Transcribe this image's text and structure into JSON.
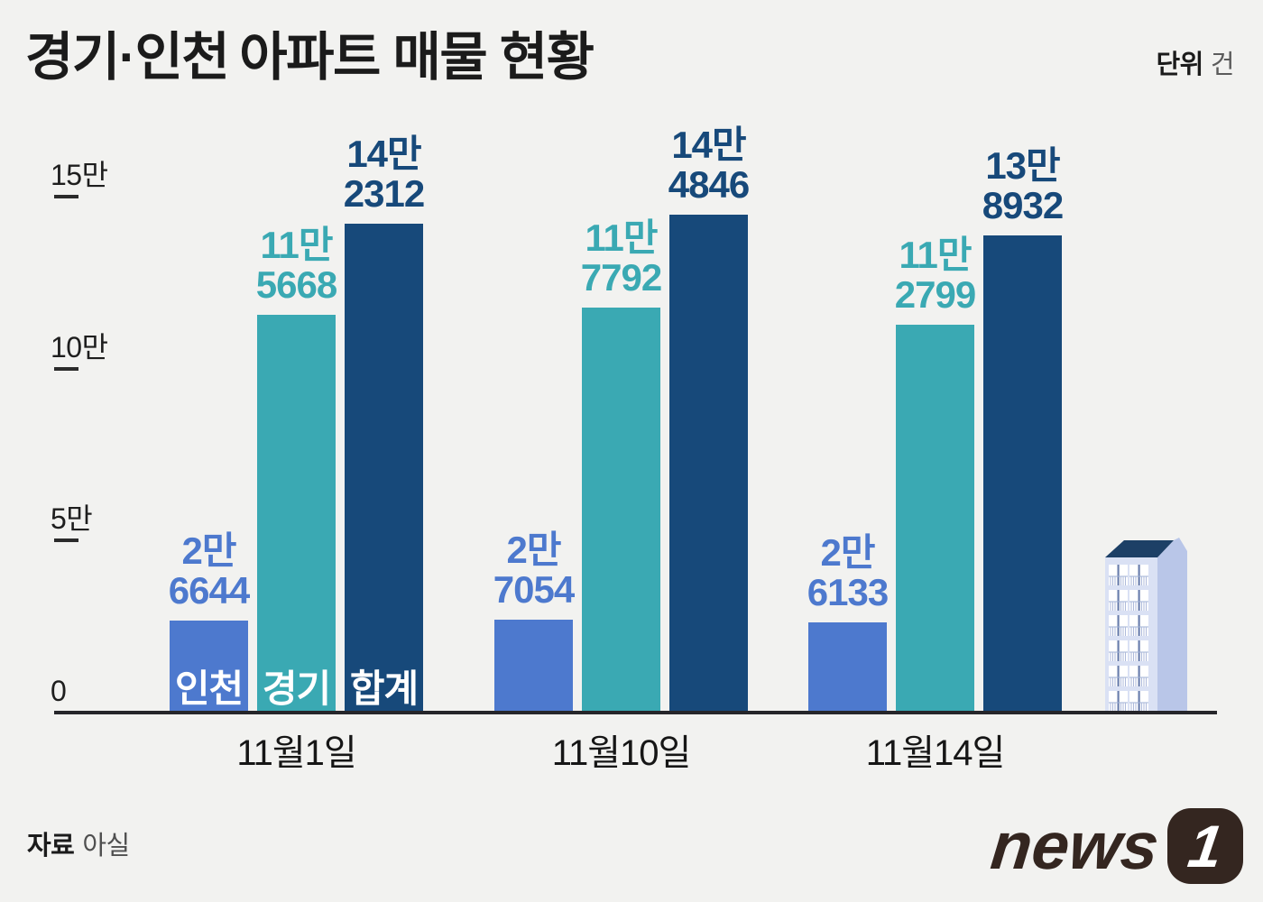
{
  "header": {
    "title_regular": "경기·인천",
    "title_bold": "아파트 매물 현황",
    "unit_label": "단위",
    "unit_value": "건"
  },
  "chart_data": {
    "type": "bar",
    "title": "경기·인천 아파트 매물 현황",
    "unit": "건",
    "categories": [
      "11월1일",
      "11월10일",
      "11월14일"
    ],
    "series": [
      {
        "name": "인천",
        "color": "#4d79ce",
        "values": [
          26644,
          27054,
          26133
        ],
        "value_labels": [
          [
            "2만",
            "6644"
          ],
          [
            "2만",
            "7054"
          ],
          [
            "2만",
            "6133"
          ]
        ]
      },
      {
        "name": "경기",
        "color": "#3aa9b3",
        "values": [
          115668,
          117792,
          112799
        ],
        "value_labels": [
          [
            "11만",
            "5668"
          ],
          [
            "11만",
            "7792"
          ],
          [
            "11만",
            "2799"
          ]
        ]
      },
      {
        "name": "합계",
        "color": "#17497a",
        "values": [
          142312,
          144846,
          138932
        ],
        "value_labels": [
          [
            "14만",
            "2312"
          ],
          [
            "14만",
            "4846"
          ],
          [
            "13만",
            "8932"
          ]
        ]
      }
    ],
    "yticks": [
      {
        "label": "0",
        "value": 0
      },
      {
        "label": "5만",
        "value": 50000
      },
      {
        "label": "10만",
        "value": 100000
      },
      {
        "label": "15만",
        "value": 150000
      }
    ],
    "ylim": [
      0,
      155000
    ],
    "grid": false,
    "legend": "series names shown inside first group bars",
    "xlabel": "",
    "ylabel": ""
  },
  "footer": {
    "source_label": "자료",
    "source_value": "아실",
    "logo_text": "news",
    "logo_badge": "1"
  }
}
